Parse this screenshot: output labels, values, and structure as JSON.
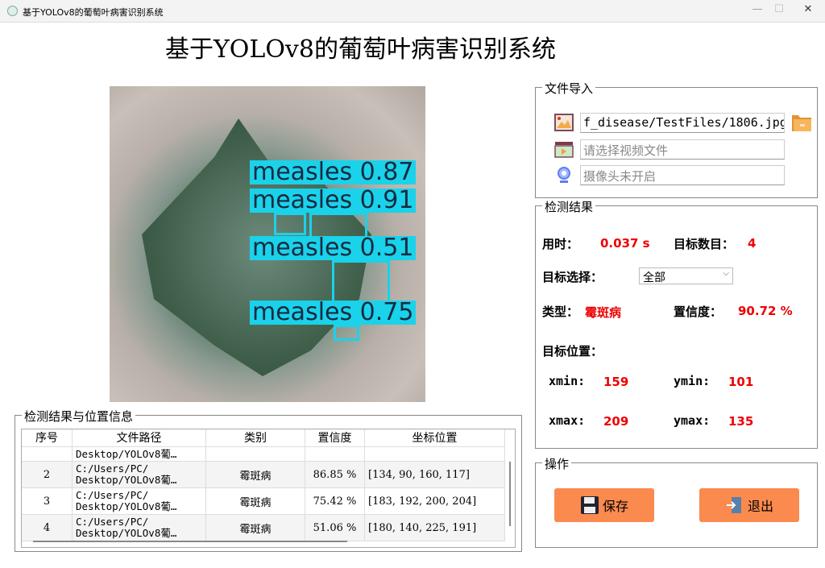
{
  "window": {
    "title": "基于YOLOv8的葡萄叶病害识别系统",
    "minimize": "—",
    "maximize": "☐",
    "close": "✕"
  },
  "header": {
    "title": "基于YOLOv8的葡萄叶病害识别系统"
  },
  "image": {
    "detections": [
      {
        "label": "measles 0.87"
      },
      {
        "label": "measles 0.91"
      },
      {
        "label": "measles 0.51"
      },
      {
        "label": "measles 0.75"
      }
    ],
    "box_color": "#1ad2ea"
  },
  "file_import": {
    "title": "文件导入",
    "image_path": "f_disease/TestFiles/1806.jpg",
    "video_placeholder": "请选择视频文件",
    "camera_placeholder": "摄像头未开启"
  },
  "result": {
    "title": "检测结果",
    "time_label": "用时：",
    "time_value": "0.037 s",
    "count_label": "目标数目：",
    "count_value": "4",
    "select_label": "目标选择：",
    "select_value": "全部",
    "type_label": "类型：",
    "type_value": "霉斑病",
    "conf_label": "置信度：",
    "conf_value": "90.72 %",
    "pos_label": "目标位置：",
    "xmin_label": "xmin:",
    "xmin": "159",
    "ymin_label": "ymin:",
    "ymin": "101",
    "xmax_label": "xmax:",
    "xmax": "209",
    "ymax_label": "ymax:",
    "ymax": "135",
    "value_color": "#e00000"
  },
  "actions": {
    "title": "操作",
    "save": "保存",
    "exit": "退出",
    "button_color": "#fb8a4e"
  },
  "table": {
    "title": "检测结果与位置信息",
    "headers": [
      "序号",
      "文件路径",
      "类别",
      "置信度",
      "坐标位置"
    ],
    "partial_row": {
      "path": "Desktop/YOLOv8葡…"
    },
    "rows": [
      {
        "index": "2",
        "path": "C:/Users/PC/\nDesktop/YOLOv8葡…",
        "class": "霉斑病",
        "conf": "86.85 %",
        "coords": "[134, 90, 160, 117]"
      },
      {
        "index": "3",
        "path": "C:/Users/PC/\nDesktop/YOLOv8葡…",
        "class": "霉斑病",
        "conf": "75.42 %",
        "coords": "[183, 192, 200, 204]"
      },
      {
        "index": "4",
        "path": "C:/Users/PC/\nDesktop/YOLOv8葡…",
        "class": "霉斑病",
        "conf": "51.06 %",
        "coords": "[180, 140, 225, 191]"
      }
    ]
  }
}
